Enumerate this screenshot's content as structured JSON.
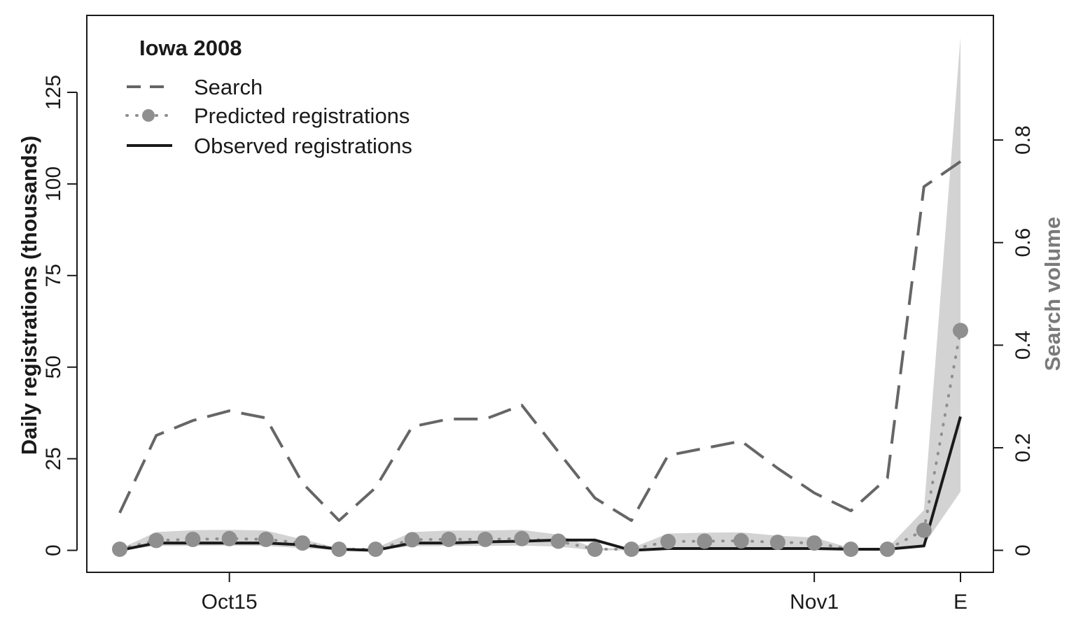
{
  "chart_data": {
    "type": "line",
    "title": "Iowa 2008",
    "ylabel_left": "Daily registrations (thousands)",
    "ylabel_right": "Search volume",
    "x_tick_labels": [
      {
        "index": 3,
        "label": "Oct15"
      },
      {
        "index": 19,
        "label": "Nov1"
      },
      {
        "index": 23,
        "label": "E"
      }
    ],
    "x_index_range": [
      -0.9,
      23.9
    ],
    "left_axis": {
      "ylim": [
        -6,
        146
      ],
      "ticks": [
        0,
        25,
        50,
        75,
        100,
        125
      ]
    },
    "right_axis": {
      "ylim": [
        -0.0429,
        1.043
      ],
      "ticks": [
        "0",
        "0.2",
        "0.4",
        "0.6",
        "0.8"
      ]
    },
    "legend": {
      "position": "top-left",
      "entries": [
        "Search",
        "Predicted registrations",
        "Observed registrations"
      ]
    },
    "colors": {
      "search": "#666666",
      "predicted": "#8f8f8f",
      "observed": "#1a1a1a",
      "band": "#d3d3d3",
      "axis": "#1a1a1a",
      "right_axis_title": "#7a7a7a"
    },
    "series": [
      {
        "name": "Search",
        "axis": "right",
        "style": "dashed",
        "x": [
          0,
          1,
          2,
          3,
          4,
          5,
          6,
          7,
          8,
          9,
          10,
          11,
          12,
          13,
          14,
          15,
          16,
          17,
          18,
          19,
          20,
          21,
          22,
          23
        ],
        "values": [
          0.073,
          0.224,
          0.253,
          0.272,
          0.258,
          0.131,
          0.058,
          0.122,
          0.241,
          0.256,
          0.256,
          0.283,
          0.192,
          0.102,
          0.058,
          0.185,
          0.199,
          0.213,
          0.16,
          0.112,
          0.077,
          0.141,
          0.709,
          0.758
        ]
      },
      {
        "name": "Predicted registrations",
        "axis": "left",
        "style": "dotted-with-points",
        "x": [
          0,
          1,
          2,
          3,
          4,
          5,
          6,
          7,
          8,
          9,
          10,
          11,
          12,
          13,
          14,
          15,
          16,
          17,
          18,
          19,
          20,
          21,
          22,
          23
        ],
        "values": [
          0.3,
          2.7,
          3.0,
          3.2,
          3.0,
          2.0,
          0.3,
          0.3,
          2.9,
          3.0,
          3.0,
          3.2,
          2.5,
          0.3,
          0.3,
          2.4,
          2.5,
          2.6,
          2.2,
          2.0,
          0.3,
          0.3,
          5.5,
          60.0
        ]
      },
      {
        "name": "Observed registrations",
        "axis": "left",
        "style": "solid",
        "x": [
          0,
          1,
          2,
          3,
          4,
          5,
          6,
          7,
          8,
          9,
          10,
          11,
          12,
          13,
          14,
          15,
          16,
          17,
          18,
          19,
          20,
          21,
          22,
          23
        ],
        "values": [
          0.0,
          2.0,
          2.0,
          2.0,
          2.0,
          1.5,
          0.3,
          0.0,
          2.0,
          2.0,
          2.3,
          2.5,
          2.8,
          2.8,
          0.0,
          0.5,
          0.5,
          0.5,
          0.5,
          0.5,
          0.3,
          0.3,
          1.2,
          36.5
        ]
      }
    ],
    "prediction_band": {
      "axis": "left",
      "x": [
        0,
        1,
        2,
        3,
        4,
        5,
        6,
        7,
        8,
        9,
        10,
        11,
        12,
        13,
        14,
        15,
        16,
        17,
        18,
        19,
        20,
        21,
        22,
        23
      ],
      "lower": [
        0.0,
        1.2,
        1.2,
        1.3,
        1.2,
        0.6,
        0.0,
        0.0,
        1.1,
        1.2,
        1.2,
        1.3,
        1.0,
        0.0,
        0.0,
        0.6,
        0.7,
        0.7,
        0.5,
        0.4,
        0.0,
        0.0,
        1.5,
        16.0
      ],
      "upper": [
        0.4,
        5.0,
        5.5,
        5.6,
        5.4,
        3.0,
        0.6,
        0.6,
        5.0,
        5.4,
        5.4,
        5.6,
        4.3,
        0.6,
        0.6,
        4.6,
        4.8,
        4.9,
        4.0,
        3.5,
        0.6,
        0.6,
        11.0,
        140.0
      ]
    }
  }
}
